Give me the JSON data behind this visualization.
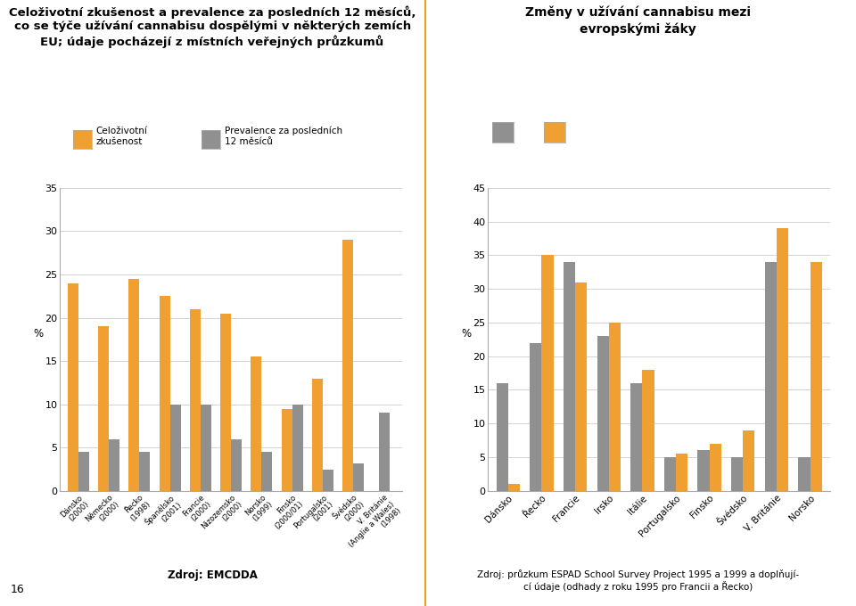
{
  "left_title_line1": "Celoživotní zkušenost a prevalence za posledních 12 měsíců,",
  "left_title_line2": "co se týče užívání cannabisu dospělými v některých zemích",
  "left_title_line3": "EU; údaje pocházejí z místních veřejných průzkumů",
  "right_title_line1": "Změny v užívání cannabisu mezi",
  "right_title_line2": "evropskými žáky",
  "left_source": "Zdroj: EMCDDA",
  "legend_left_label1": "Celoživotní\nzkušenost",
  "legend_left_label2": "Prevalence za posledních\n12 měsíců",
  "left_categories": [
    "Dánsko\n(2000)",
    "Německo\n(2000)",
    "Řecko\n(1998)",
    "Španělsko\n(2001)",
    "Francie\n(2000)",
    "Nizozemsko\n(2000)",
    "Norsko\n(1999)",
    "Finsko\n(2000/01)",
    "Portugalsko\n(2001)",
    "Švédsko\n(2000)",
    "V. Británie\n(Anglie a Wales)\n(1998)"
  ],
  "left_orange": [
    24.0,
    19.0,
    24.5,
    22.5,
    21.0,
    20.5,
    15.5,
    9.5,
    13.0,
    29.0,
    null
  ],
  "left_grey": [
    4.5,
    6.0,
    4.5,
    10.0,
    10.0,
    6.0,
    4.5,
    10.0,
    2.5,
    3.2,
    9.0
  ],
  "left_ylim": [
    0,
    35
  ],
  "left_yticks": [
    0,
    5,
    10,
    15,
    20,
    25,
    30,
    35
  ],
  "right_categories": [
    "Dánsko",
    "Řecko",
    "Francie",
    "Irsko",
    "Itálie",
    "Portugalsko",
    "Finsko",
    "Švédsko",
    "V. Británie",
    "Norsko"
  ],
  "right_grey_earlier": [
    16.0,
    22.0,
    34.0,
    23.0,
    16.0,
    5.0,
    6.0,
    5.0,
    34.0,
    5.0
  ],
  "right_orange_later": [
    1.0,
    35.0,
    31.0,
    25.0,
    18.0,
    5.5,
    7.0,
    9.0,
    39.0,
    34.0
  ],
  "right_ylim": [
    0,
    45
  ],
  "right_yticks": [
    0,
    5,
    10,
    15,
    20,
    25,
    30,
    35,
    40,
    45
  ],
  "orange_color": "#F0A030",
  "grey_color": "#909090",
  "separator_color": "#E8A020",
  "right_source": "Zdroj: průzkum ESPAD School Survey Project 1995 a 1999 a doplňují-\ncí údaje (odhady z roku 1995 pro Francii a Řecko)"
}
